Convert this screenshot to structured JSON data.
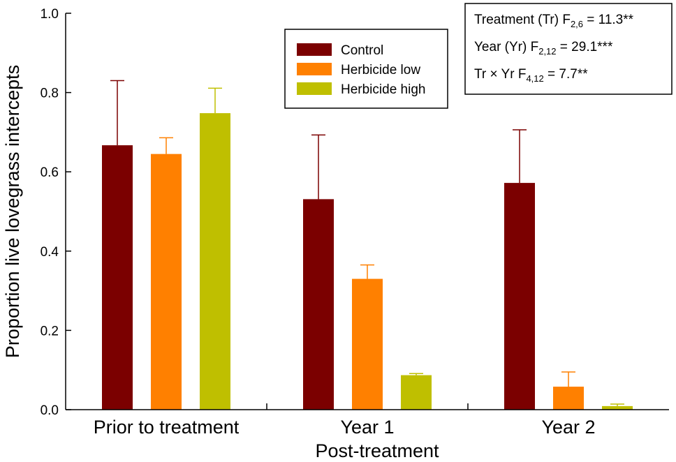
{
  "chart_data": {
    "type": "bar",
    "ylabel": "Proportion live lovegrass intercepts",
    "xlabel": "Post-treatment",
    "ylim": [
      0,
      1.0
    ],
    "yticks": [
      "0.0",
      "0.2",
      "0.4",
      "0.6",
      "0.8",
      "1.0"
    ],
    "categories": [
      "Prior to treatment",
      "Year 1",
      "Year 2"
    ],
    "series": [
      {
        "name": "Control",
        "color": "#7b0000",
        "values": [
          0.667,
          0.531,
          0.572
        ],
        "errors": [
          0.163,
          0.162,
          0.134
        ]
      },
      {
        "name": "Herbicide low",
        "color": "#ff8000",
        "values": [
          0.645,
          0.33,
          0.058
        ],
        "errors": [
          0.041,
          0.035,
          0.037
        ]
      },
      {
        "name": "Herbicide high",
        "color": "#bfbf00",
        "values": [
          0.748,
          0.087,
          0.009
        ],
        "errors": [
          0.063,
          0.004,
          0.005
        ]
      }
    ],
    "legend_position": "top-center",
    "stats": [
      {
        "prefix": "Treatment (Tr) F",
        "sub": "2,6",
        "suffix": " = 11.3**"
      },
      {
        "prefix": "Year (Yr) F",
        "sub": "2,12",
        "suffix": " = 29.1***"
      },
      {
        "prefix": "Tr × Yr  F",
        "sub": "4,12",
        "suffix": " = 7.7**"
      }
    ]
  }
}
